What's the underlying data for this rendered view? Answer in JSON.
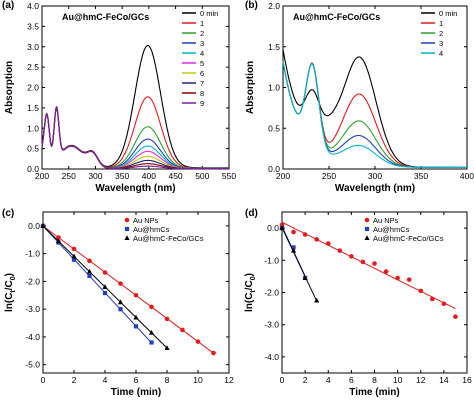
{
  "chart_data": [
    {
      "panel": "(a)",
      "type": "line",
      "title": "Au@hmC-FeCo/GCs",
      "xlabel": "Wavelength (nm)",
      "ylabel": "Absorption",
      "xlim": [
        200,
        550
      ],
      "ylim": [
        0,
        4.0
      ],
      "xticks": [
        200,
        250,
        300,
        350,
        400,
        450,
        500,
        550
      ],
      "yticks": [
        0.0,
        0.5,
        1.0,
        1.5,
        2.0,
        2.5,
        3.0,
        3.5,
        4.0
      ],
      "ytick_labels": [
        "0.0",
        "0.5",
        "1.0",
        "1.5",
        "2.0",
        "2.5",
        "3.0",
        "3.5",
        "4.0"
      ],
      "legend_position": "top-right",
      "series": [
        {
          "name": "0 min",
          "color": "#000000",
          "peak": 3.0
        },
        {
          "name": "1",
          "color": "#e41a1c",
          "peak": 1.75
        },
        {
          "name": "2",
          "color": "#2ca02c",
          "peak": 1.02
        },
        {
          "name": "3",
          "color": "#1f3fbf",
          "peak": 0.72
        },
        {
          "name": "4",
          "color": "#00b7c7",
          "peak": 0.55
        },
        {
          "name": "5",
          "color": "#e628e6",
          "peak": 0.42
        },
        {
          "name": "6",
          "color": "#c8c800",
          "peak": 0.3
        },
        {
          "name": "7",
          "color": "#1a237e",
          "peak": 0.2
        },
        {
          "name": "8",
          "color": "#8b0000",
          "peak": 0.12
        },
        {
          "name": "9",
          "color": "#7b1fa2",
          "peak": 0.06
        }
      ]
    },
    {
      "panel": "(b)",
      "type": "line",
      "title": "Au@hmC-FeCo/GCs",
      "xlabel": "Wavelength (nm)",
      "ylabel": "Absorption",
      "xlim": [
        200,
        400
      ],
      "ylim": [
        0,
        2.0
      ],
      "xticks": [
        200,
        250,
        300,
        350,
        400
      ],
      "yticks": [
        0.0,
        0.5,
        1.0,
        1.5,
        2.0
      ],
      "ytick_labels": [
        "0.0",
        "0.5",
        "1.0",
        "1.5",
        "2.0"
      ],
      "legend_position": "top-right",
      "series": [
        {
          "name": "0 min",
          "color": "#000000",
          "peak": 1.32
        },
        {
          "name": "1",
          "color": "#e41a1c",
          "peak": 0.88
        },
        {
          "name": "2",
          "color": "#2ca02c",
          "peak": 0.55
        },
        {
          "name": "3",
          "color": "#1f3fbf",
          "peak": 0.37
        },
        {
          "name": "4",
          "color": "#00b7c7",
          "peak": 0.25
        }
      ]
    },
    {
      "panel": "(c)",
      "type": "scatter",
      "xlabel": "Time (min)",
      "ylabel": "ln(Ct/C0)",
      "xlim": [
        0,
        12
      ],
      "ylim": [
        -5.3,
        0.5
      ],
      "xticks": [
        0,
        2,
        4,
        6,
        8,
        10,
        12
      ],
      "yticks": [
        0.0,
        -1.0,
        -2.0,
        -3.0,
        -4.0,
        -5.0
      ],
      "ytick_labels": [
        "0.0",
        "-1.0",
        "-2.0",
        "-3.0",
        "-4.0",
        "-5.0"
      ],
      "legend_position": "top-right",
      "series": [
        {
          "name": "Au NPs",
          "color": "#e41a1c",
          "marker": "circle",
          "x": [
            0,
            1,
            2,
            3,
            4,
            5,
            6,
            7,
            8,
            9,
            10,
            11
          ],
          "y": [
            0,
            -0.42,
            -0.83,
            -1.26,
            -1.68,
            -2.08,
            -2.5,
            -2.92,
            -3.35,
            -3.75,
            -4.17,
            -4.58
          ]
        },
        {
          "name": "Au@hmCs",
          "color": "#1f3fbf",
          "marker": "square",
          "x": [
            0,
            1,
            2,
            3,
            4,
            5,
            6,
            7
          ],
          "y": [
            0,
            -0.6,
            -1.22,
            -1.8,
            -2.42,
            -3.0,
            -3.62,
            -4.2
          ]
        },
        {
          "name": "Au@hmC-FeCo/GCs",
          "color": "#000000",
          "marker": "triangle",
          "x": [
            0,
            1,
            2,
            3,
            4,
            5,
            6,
            7,
            8
          ],
          "y": [
            0,
            -0.55,
            -1.1,
            -1.65,
            -2.2,
            -2.75,
            -3.3,
            -3.85,
            -4.4
          ]
        }
      ]
    },
    {
      "panel": "(d)",
      "type": "scatter",
      "xlabel": "Time (min)",
      "ylabel": "ln(Ct/C0)",
      "xlim": [
        0,
        16
      ],
      "ylim": [
        -4.5,
        0.5
      ],
      "xticks": [
        0,
        2,
        4,
        6,
        8,
        10,
        12,
        14,
        16
      ],
      "yticks": [
        0.0,
        -1.0,
        -2.0,
        -3.0,
        -4.0
      ],
      "ytick_labels": [
        "0.0",
        "-1.0",
        "-2.0",
        "-3.0",
        "-4.0"
      ],
      "legend_position": "top-right",
      "series": [
        {
          "name": "Au NPs",
          "color": "#e41a1c",
          "marker": "circle",
          "x": [
            0,
            1,
            2,
            3,
            4,
            5,
            6,
            7,
            8,
            9,
            10,
            11,
            12,
            13,
            14,
            15
          ],
          "y": [
            0.1,
            -0.12,
            -0.2,
            -0.35,
            -0.48,
            -0.7,
            -0.88,
            -1.05,
            -1.1,
            -1.35,
            -1.55,
            -1.6,
            -1.95,
            -2.2,
            -2.35,
            -2.75
          ]
        },
        {
          "name": "Au@hmCs",
          "color": "#1f3fbf",
          "marker": "square",
          "x": [
            0,
            1,
            2
          ],
          "y": [
            0,
            -0.6,
            -1.55
          ]
        },
        {
          "name": "Au@hmC-FeCo/GCs",
          "color": "#000000",
          "marker": "triangle",
          "x": [
            0,
            1,
            2,
            3
          ],
          "y": [
            0,
            -0.7,
            -1.55,
            -2.25
          ]
        }
      ]
    }
  ]
}
